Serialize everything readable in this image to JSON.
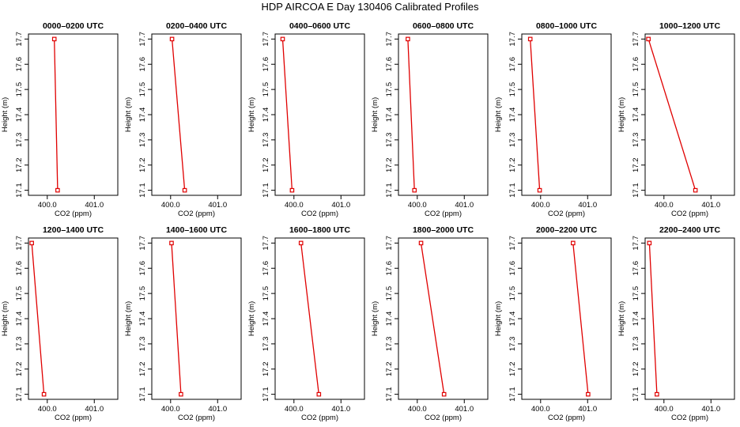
{
  "figure": {
    "title": "HDP AIRCOA E  Day 130406  Calibrated Profiles"
  },
  "chart_data": [
    {
      "type": "line",
      "title": "0000–0200 UTC",
      "xlabel": "CO2 (ppm)",
      "ylabel": "Height (m)",
      "ylim": [
        17.08,
        17.72
      ],
      "xticks": [
        "400.0",
        "401.0"
      ],
      "yticks": [
        "17.1",
        "17.2",
        "17.3",
        "17.4",
        "17.5",
        "17.6",
        "17.7"
      ],
      "xlim": [
        399.6,
        401.5
      ],
      "series": [
        {
          "points": [
            {
              "x": 400.15,
              "y": 17.7
            },
            {
              "x": 400.22,
              "y": 17.1
            }
          ]
        }
      ]
    },
    {
      "type": "line",
      "title": "0200–0400 UTC",
      "xlabel": "CO2 (ppm)",
      "ylabel": "Height (m)",
      "ylim": [
        17.08,
        17.72
      ],
      "xticks": [
        "400.0",
        "401.0"
      ],
      "yticks": [
        "17.1",
        "17.2",
        "17.3",
        "17.4",
        "17.5",
        "17.6",
        "17.7"
      ],
      "xlim": [
        399.6,
        401.5
      ],
      "series": [
        {
          "points": [
            {
              "x": 400.03,
              "y": 17.7
            },
            {
              "x": 400.3,
              "y": 17.1
            }
          ]
        }
      ]
    },
    {
      "type": "line",
      "title": "0400–0600 UTC",
      "xlabel": "CO2 (ppm)",
      "ylabel": "Height (m)",
      "ylim": [
        17.08,
        17.72
      ],
      "xticks": [
        "400.0",
        "401.0"
      ],
      "yticks": [
        "17.1",
        "17.2",
        "17.3",
        "17.4",
        "17.5",
        "17.6",
        "17.7"
      ],
      "xlim": [
        399.6,
        401.5
      ],
      "series": [
        {
          "points": [
            {
              "x": 399.76,
              "y": 17.7
            },
            {
              "x": 399.96,
              "y": 17.1
            }
          ]
        }
      ]
    },
    {
      "type": "line",
      "title": "0600–0800 UTC",
      "xlabel": "CO2 (ppm)",
      "ylabel": "Height (m)",
      "ylim": [
        17.08,
        17.72
      ],
      "xticks": [
        "400.0",
        "401.0"
      ],
      "yticks": [
        "17.1",
        "17.2",
        "17.3",
        "17.4",
        "17.5",
        "17.6",
        "17.7"
      ],
      "xlim": [
        399.6,
        401.5
      ],
      "series": [
        {
          "points": [
            {
              "x": 399.8,
              "y": 17.7
            },
            {
              "x": 399.94,
              "y": 17.1
            }
          ]
        }
      ]
    },
    {
      "type": "line",
      "title": "0800–1000 UTC",
      "xlabel": "CO2 (ppm)",
      "ylabel": "Height (m)",
      "ylim": [
        17.08,
        17.72
      ],
      "xticks": [
        "400.0",
        "401.0"
      ],
      "yticks": [
        "17.1",
        "17.2",
        "17.3",
        "17.4",
        "17.5",
        "17.6",
        "17.7"
      ],
      "xlim": [
        399.6,
        401.5
      ],
      "series": [
        {
          "points": [
            {
              "x": 399.78,
              "y": 17.7
            },
            {
              "x": 399.98,
              "y": 17.1
            }
          ]
        }
      ]
    },
    {
      "type": "line",
      "title": "1000–1200 UTC",
      "xlabel": "CO2 (ppm)",
      "ylabel": "Height (m)",
      "ylim": [
        17.08,
        17.72
      ],
      "xticks": [
        "400.0",
        "401.0"
      ],
      "yticks": [
        "17.1",
        "17.2",
        "17.3",
        "17.4",
        "17.5",
        "17.6",
        "17.7"
      ],
      "xlim": [
        399.6,
        401.5
      ],
      "series": [
        {
          "points": [
            {
              "x": 399.67,
              "y": 17.7
            },
            {
              "x": 400.67,
              "y": 17.1
            }
          ]
        }
      ]
    },
    {
      "type": "line",
      "title": "1200–1400 UTC",
      "xlabel": "CO2 (ppm)",
      "ylabel": "Height (m)",
      "ylim": [
        17.08,
        17.72
      ],
      "xticks": [
        "400.0",
        "401.0"
      ],
      "yticks": [
        "17.1",
        "17.2",
        "17.3",
        "17.4",
        "17.5",
        "17.6",
        "17.7"
      ],
      "xlim": [
        399.6,
        401.5
      ],
      "series": [
        {
          "points": [
            {
              "x": 399.67,
              "y": 17.7
            },
            {
              "x": 399.93,
              "y": 17.1
            }
          ]
        }
      ]
    },
    {
      "type": "line",
      "title": "1400–1600 UTC",
      "xlabel": "CO2 (ppm)",
      "ylabel": "Height (m)",
      "ylim": [
        17.08,
        17.72
      ],
      "xticks": [
        "400.0",
        "401.0"
      ],
      "yticks": [
        "17.1",
        "17.2",
        "17.3",
        "17.4",
        "17.5",
        "17.6",
        "17.7"
      ],
      "xlim": [
        399.6,
        401.5
      ],
      "series": [
        {
          "points": [
            {
              "x": 400.02,
              "y": 17.7
            },
            {
              "x": 400.22,
              "y": 17.1
            }
          ]
        }
      ]
    },
    {
      "type": "line",
      "title": "1600–1800 UTC",
      "xlabel": "CO2 (ppm)",
      "ylabel": "Height (m)",
      "ylim": [
        17.08,
        17.72
      ],
      "xticks": [
        "400.0",
        "401.0"
      ],
      "yticks": [
        "17.1",
        "17.2",
        "17.3",
        "17.4",
        "17.5",
        "17.6",
        "17.7"
      ],
      "xlim": [
        399.6,
        401.5
      ],
      "series": [
        {
          "points": [
            {
              "x": 400.15,
              "y": 17.7
            },
            {
              "x": 400.53,
              "y": 17.1
            }
          ]
        }
      ]
    },
    {
      "type": "line",
      "title": "1800–2000 UTC",
      "xlabel": "CO2 (ppm)",
      "ylabel": "Height (m)",
      "ylim": [
        17.08,
        17.72
      ],
      "xticks": [
        "400.0",
        "401.0"
      ],
      "yticks": [
        "17.1",
        "17.2",
        "17.3",
        "17.4",
        "17.5",
        "17.6",
        "17.7"
      ],
      "xlim": [
        399.6,
        401.5
      ],
      "series": [
        {
          "points": [
            {
              "x": 400.08,
              "y": 17.7
            },
            {
              "x": 400.57,
              "y": 17.1
            }
          ]
        }
      ]
    },
    {
      "type": "line",
      "title": "2000–2200 UTC",
      "xlabel": "CO2 (ppm)",
      "ylabel": "Height (m)",
      "ylim": [
        17.08,
        17.72
      ],
      "xticks": [
        "400.0",
        "401.0"
      ],
      "yticks": [
        "17.1",
        "17.2",
        "17.3",
        "17.4",
        "17.5",
        "17.6",
        "17.7"
      ],
      "xlim": [
        399.6,
        401.5
      ],
      "series": [
        {
          "points": [
            {
              "x": 400.69,
              "y": 17.7
            },
            {
              "x": 401.01,
              "y": 17.1
            }
          ]
        }
      ]
    },
    {
      "type": "line",
      "title": "2200–2400 UTC",
      "xlabel": "CO2 (ppm)",
      "ylabel": "Height (m)",
      "ylim": [
        17.08,
        17.72
      ],
      "xticks": [
        "400.0",
        "401.0"
      ],
      "yticks": [
        "17.1",
        "17.2",
        "17.3",
        "17.4",
        "17.5",
        "17.6",
        "17.7"
      ],
      "xlim": [
        399.6,
        401.5
      ],
      "series": [
        {
          "points": [
            {
              "x": 399.69,
              "y": 17.7
            },
            {
              "x": 399.85,
              "y": 17.1
            }
          ]
        }
      ]
    }
  ],
  "colors": {
    "series": "#e00000",
    "marker": "#e00000",
    "axis": "#000000"
  }
}
